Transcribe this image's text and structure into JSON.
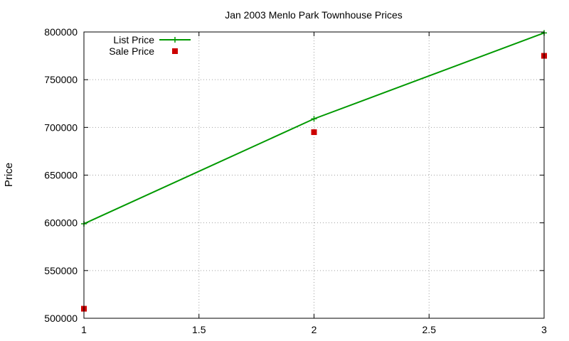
{
  "chart_data": {
    "type": "line",
    "title": "Jan 2003 Menlo Park Townhouse Prices",
    "xlabel": "",
    "ylabel": "Price",
    "xlim": [
      1,
      3
    ],
    "ylim": [
      500000,
      800000
    ],
    "x_ticks": [
      "1",
      "1.5",
      "2",
      "2.5",
      "3"
    ],
    "y_ticks": [
      "500000",
      "550000",
      "600000",
      "650000",
      "700000",
      "750000",
      "800000"
    ],
    "grid": true,
    "legend_position": "top-left",
    "series": [
      {
        "name": "List Price",
        "style": "line-with-plus-markers",
        "color": "#009900",
        "x": [
          1,
          2,
          3
        ],
        "y": [
          599000,
          709000,
          799000
        ]
      },
      {
        "name": "Sale Price",
        "style": "square-markers",
        "color": "#cc0000",
        "x": [
          1,
          2,
          3
        ],
        "y": [
          510000,
          695000,
          775000
        ]
      }
    ]
  }
}
